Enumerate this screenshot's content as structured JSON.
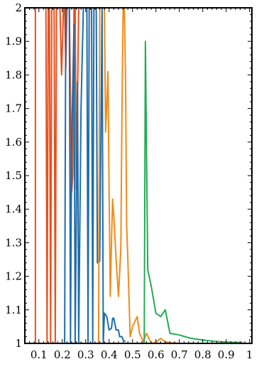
{
  "chart_data": {
    "type": "line",
    "title": "",
    "xlabel": "",
    "ylabel": "",
    "xlim": [
      0.04,
      1.01
    ],
    "ylim": [
      1.0,
      2.0
    ],
    "x_ticks": [
      0.1,
      0.2,
      0.3,
      0.4,
      0.5,
      0.6,
      0.7,
      0.8,
      0.9,
      1
    ],
    "x_tick_labels": [
      "0.1",
      "0.2",
      "0.3",
      "0.4",
      "0.5",
      "0.6",
      "0.7",
      "0.8",
      "0.9",
      "1"
    ],
    "y_ticks": [
      1,
      1.1,
      1.2,
      1.3,
      1.4,
      1.5,
      1.6,
      1.7,
      1.8,
      1.9,
      2
    ],
    "y_tick_labels": [
      "1",
      "1.1",
      "1.2",
      "1.3",
      "1.4",
      "1.5",
      "1.6",
      "1.7",
      "1.8",
      "1.9",
      "2"
    ],
    "grid": false,
    "legend": "none",
    "series": [
      {
        "color": "#e8501e",
        "points": [
          [
            0.085,
            1.0
          ],
          [
            0.085,
            2.0
          ],
          [
            0.1,
            2.0
          ],
          [
            0.13,
            2.0
          ],
          [
            0.135,
            1.0
          ],
          [
            0.14,
            2.0
          ],
          [
            0.145,
            2.0
          ],
          [
            0.15,
            1.0
          ],
          [
            0.155,
            2.0
          ],
          [
            0.165,
            2.0
          ],
          [
            0.17,
            1.0
          ],
          [
            0.175,
            2.0
          ],
          [
            0.19,
            2.0
          ],
          [
            0.197,
            1.8
          ],
          [
            0.205,
            2.0
          ],
          [
            0.21,
            2.0
          ],
          [
            0.215,
            1.82
          ],
          [
            0.22,
            2.0
          ],
          [
            0.23,
            2.0
          ],
          [
            0.24,
            1.45
          ],
          [
            0.245,
            1.5
          ],
          [
            0.25,
            2.0
          ],
          [
            0.255,
            2.0
          ],
          [
            0.26,
            1.46
          ],
          [
            0.27,
            2.0
          ],
          [
            0.28,
            2.0
          ]
        ]
      },
      {
        "color": "#1f6da8",
        "points": [
          [
            0.21,
            1.0
          ],
          [
            0.215,
            2.0
          ],
          [
            0.23,
            2.0
          ],
          [
            0.235,
            1.0
          ],
          [
            0.24,
            1.6
          ],
          [
            0.25,
            1.95
          ],
          [
            0.255,
            1.0
          ],
          [
            0.265,
            1.78
          ],
          [
            0.27,
            1.0
          ],
          [
            0.28,
            1.7
          ],
          [
            0.29,
            2.0
          ],
          [
            0.305,
            2.0
          ],
          [
            0.31,
            1.0
          ],
          [
            0.315,
            2.0
          ],
          [
            0.325,
            2.0
          ],
          [
            0.33,
            1.0
          ],
          [
            0.335,
            2.0
          ],
          [
            0.345,
            2.0
          ],
          [
            0.35,
            1.24
          ],
          [
            0.36,
            1.245
          ],
          [
            0.37,
            2.0
          ],
          [
            0.375,
            1.0
          ],
          [
            0.38,
            1.09
          ],
          [
            0.39,
            1.08
          ],
          [
            0.4,
            1.04
          ],
          [
            0.41,
            1.045
          ],
          [
            0.415,
            1.075
          ],
          [
            0.42,
            1.075
          ],
          [
            0.43,
            1.04
          ],
          [
            0.44,
            1.04
          ],
          [
            0.445,
            1.02
          ],
          [
            0.455,
            1.02
          ],
          [
            0.46,
            1.01
          ],
          [
            0.47,
            1.005
          ]
        ]
      },
      {
        "color": "#f08c1a",
        "points": [
          [
            0.355,
            1.0
          ],
          [
            0.36,
            2.0
          ],
          [
            0.38,
            2.0
          ],
          [
            0.385,
            1.63
          ],
          [
            0.39,
            1.71
          ],
          [
            0.395,
            1.81
          ],
          [
            0.4,
            1.45
          ],
          [
            0.405,
            1.14
          ],
          [
            0.41,
            1.3
          ],
          [
            0.415,
            1.43
          ],
          [
            0.42,
            1.38
          ],
          [
            0.43,
            1.25
          ],
          [
            0.44,
            1.14
          ],
          [
            0.45,
            1.28
          ],
          [
            0.455,
            1.7
          ],
          [
            0.46,
            2.0
          ],
          [
            0.465,
            2.0
          ],
          [
            0.47,
            1.8
          ],
          [
            0.475,
            1.35
          ],
          [
            0.48,
            1.25
          ],
          [
            0.49,
            1.02
          ],
          [
            0.5,
            1.05
          ],
          [
            0.51,
            1.065
          ],
          [
            0.52,
            1.08
          ],
          [
            0.53,
            1.03
          ],
          [
            0.54,
            1.015
          ],
          [
            0.545,
            1.005
          ],
          [
            0.56,
            1.03
          ],
          [
            0.58,
            1.0
          ],
          [
            0.6,
            1.003
          ],
          [
            0.62,
            1.015
          ],
          [
            0.64,
            1.005
          ],
          [
            0.66,
            1.002
          ],
          [
            0.7,
            1.0
          ],
          [
            0.8,
            1.0
          ],
          [
            0.9,
            1.0
          ],
          [
            0.95,
            1.0
          ]
        ]
      },
      {
        "color": "#23ab55",
        "points": [
          [
            0.55,
            1.0
          ],
          [
            0.555,
            1.9
          ],
          [
            0.565,
            1.22
          ],
          [
            0.58,
            1.17
          ],
          [
            0.6,
            1.09
          ],
          [
            0.62,
            1.08
          ],
          [
            0.64,
            1.1
          ],
          [
            0.66,
            1.03
          ],
          [
            0.7,
            1.025
          ],
          [
            0.75,
            1.015
          ],
          [
            0.8,
            1.01
          ],
          [
            0.85,
            1.006
          ],
          [
            0.9,
            1.004
          ],
          [
            0.95,
            1.003
          ],
          [
            0.97,
            1.003
          ]
        ]
      }
    ]
  }
}
